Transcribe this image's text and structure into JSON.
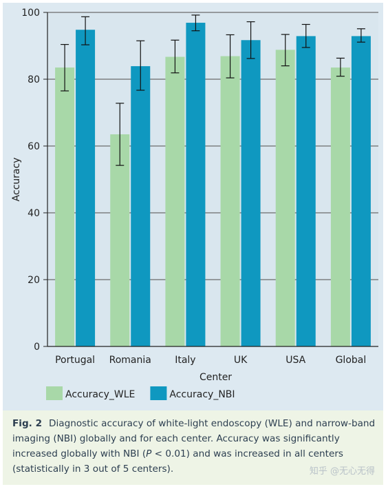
{
  "chart_data": {
    "type": "bar",
    "categories": [
      "Portugal",
      "Romania",
      "Italy",
      "UK",
      "USA",
      "Global"
    ],
    "series": [
      {
        "name": "Accuracy_WLE",
        "values": [
          83.5,
          63.5,
          86.7,
          86.9,
          88.8,
          83.5
        ],
        "error_low": [
          76.5,
          54.2,
          81.9,
          80.4,
          84.0,
          80.9
        ],
        "error_high": [
          90.4,
          72.8,
          91.7,
          93.3,
          93.4,
          86.3
        ],
        "color": "#a8d8a8"
      },
      {
        "name": "Accuracy_NBI",
        "values": [
          94.8,
          83.9,
          96.9,
          91.7,
          92.9,
          92.9
        ],
        "error_low": [
          90.3,
          76.7,
          94.5,
          86.2,
          89.5,
          91.1
        ],
        "error_high": [
          98.7,
          91.5,
          99.2,
          97.2,
          96.4,
          95.1
        ],
        "color": "#0f98c0"
      }
    ],
    "xlabel": "Center",
    "ylabel": "Accuracy",
    "ylim": [
      0,
      100
    ],
    "yticks": [
      0,
      20,
      40,
      60,
      80,
      100
    ],
    "grid": true,
    "legend_position": "bottom-left"
  },
  "caption": {
    "label": "Fig. 2",
    "text_before": "Diagnostic accuracy of white-light endoscopy (WLE) and narrow-band imaging (NBI) globally and for each center. Accuracy was significantly increased globally with NBI (",
    "italic": "P",
    "text_after": " < 0.01) and was increased in all centers (statistically in 3 out of 5 centers)."
  },
  "watermark": "知乎 @无心无得"
}
